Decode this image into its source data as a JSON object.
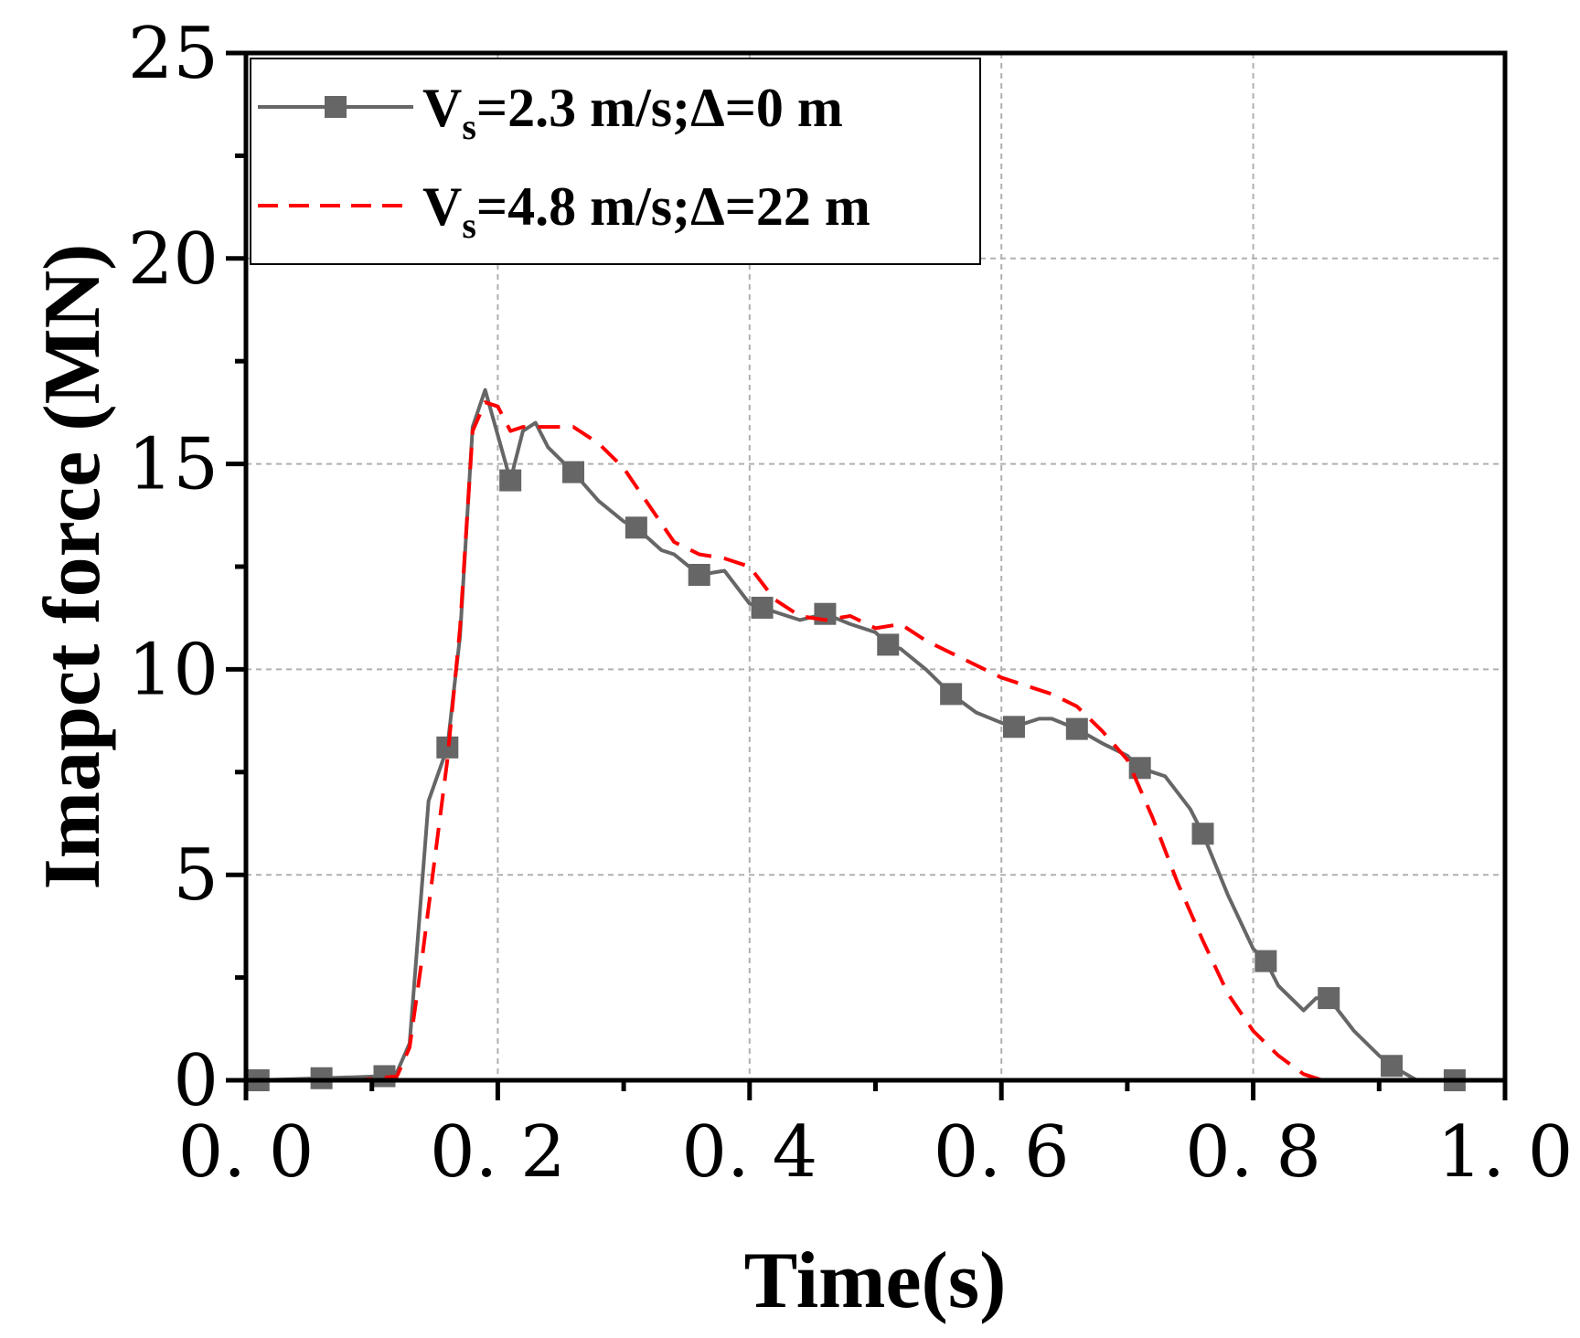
{
  "chart_data": {
    "type": "line",
    "title": "",
    "xlabel": "Time(s)",
    "ylabel": "Imapct force (MN)",
    "xlim": [
      0.0,
      1.0
    ],
    "ylim": [
      0,
      25
    ],
    "x_ticks": [
      "0. 0",
      "0. 2",
      "0. 4",
      "0. 6",
      "0. 8",
      "1. 0"
    ],
    "x_tick_values": [
      0.0,
      0.2,
      0.4,
      0.6,
      0.8,
      1.0
    ],
    "y_ticks": [
      "0",
      "5",
      "10",
      "15",
      "20",
      "25"
    ],
    "y_tick_values": [
      0,
      5,
      10,
      15,
      20,
      25
    ],
    "grid": true,
    "legend_position": "top-left",
    "series": [
      {
        "name": "Vs=2.3 m/s;Δ=0 m",
        "legend_main": "V",
        "legend_sub": "s",
        "legend_rest": "=2.3 m/s;Δ=0 m",
        "color": "#666666",
        "style": "solid-square-markers",
        "x": [
          0.01,
          0.06,
          0.11,
          0.12,
          0.13,
          0.145,
          0.16,
          0.17,
          0.18,
          0.19,
          0.2,
          0.21,
          0.22,
          0.23,
          0.24,
          0.26,
          0.28,
          0.3,
          0.31,
          0.33,
          0.34,
          0.36,
          0.38,
          0.4,
          0.41,
          0.43,
          0.44,
          0.46,
          0.48,
          0.5,
          0.51,
          0.52,
          0.54,
          0.56,
          0.58,
          0.6,
          0.61,
          0.63,
          0.64,
          0.66,
          0.68,
          0.7,
          0.71,
          0.73,
          0.75,
          0.76,
          0.78,
          0.8,
          0.81,
          0.82,
          0.84,
          0.85,
          0.86,
          0.88,
          0.9,
          0.91,
          0.93,
          0.96
        ],
        "y": [
          0.0,
          0.05,
          0.1,
          0.2,
          0.9,
          6.8,
          8.1,
          10.8,
          15.9,
          16.8,
          15.7,
          14.6,
          15.8,
          16.0,
          15.4,
          14.8,
          14.1,
          13.6,
          13.45,
          12.9,
          12.8,
          12.3,
          12.4,
          11.6,
          11.5,
          11.3,
          11.2,
          11.35,
          11.1,
          10.9,
          10.6,
          10.5,
          10.0,
          9.4,
          8.95,
          8.7,
          8.6,
          8.8,
          8.8,
          8.55,
          8.2,
          7.9,
          7.6,
          7.4,
          6.6,
          6.0,
          4.5,
          3.2,
          2.9,
          2.3,
          1.7,
          2.0,
          2.0,
          1.2,
          0.6,
          0.35,
          0.0,
          0.0
        ],
        "marker_x": [
          0.01,
          0.06,
          0.11,
          0.16,
          0.21,
          0.26,
          0.31,
          0.36,
          0.41,
          0.46,
          0.51,
          0.56,
          0.61,
          0.66,
          0.71,
          0.76,
          0.81,
          0.86,
          0.91,
          0.96
        ],
        "marker_y": [
          0.0,
          0.05,
          0.1,
          8.1,
          14.6,
          14.8,
          13.45,
          12.3,
          11.5,
          11.35,
          10.6,
          9.4,
          8.6,
          8.55,
          7.6,
          6.0,
          2.9,
          2.0,
          0.35,
          0.0
        ]
      },
      {
        "name": "Vs=4.8 m/s;Δ=22 m",
        "legend_main": "V",
        "legend_sub": "s",
        "legend_rest": "=4.8 m/s;Δ=22 m",
        "color": "#ff0000",
        "style": "dashed",
        "x": [
          0.0,
          0.09,
          0.12,
          0.13,
          0.14,
          0.16,
          0.17,
          0.18,
          0.19,
          0.2,
          0.21,
          0.22,
          0.24,
          0.26,
          0.28,
          0.3,
          0.32,
          0.34,
          0.36,
          0.38,
          0.4,
          0.42,
          0.44,
          0.46,
          0.48,
          0.5,
          0.52,
          0.54,
          0.56,
          0.58,
          0.6,
          0.62,
          0.64,
          0.66,
          0.68,
          0.7,
          0.72,
          0.74,
          0.76,
          0.78,
          0.8,
          0.82,
          0.84,
          0.855
        ],
        "y": [
          0.0,
          0.0,
          0.1,
          0.8,
          3.0,
          7.8,
          11.0,
          15.8,
          16.5,
          16.4,
          15.8,
          15.9,
          15.9,
          15.9,
          15.5,
          14.9,
          14.0,
          13.1,
          12.8,
          12.7,
          12.5,
          11.7,
          11.3,
          11.2,
          11.3,
          11.0,
          11.1,
          10.7,
          10.4,
          10.1,
          9.8,
          9.6,
          9.4,
          9.1,
          8.5,
          7.8,
          6.4,
          4.8,
          3.4,
          2.1,
          1.2,
          0.6,
          0.15,
          0.0
        ]
      }
    ]
  }
}
